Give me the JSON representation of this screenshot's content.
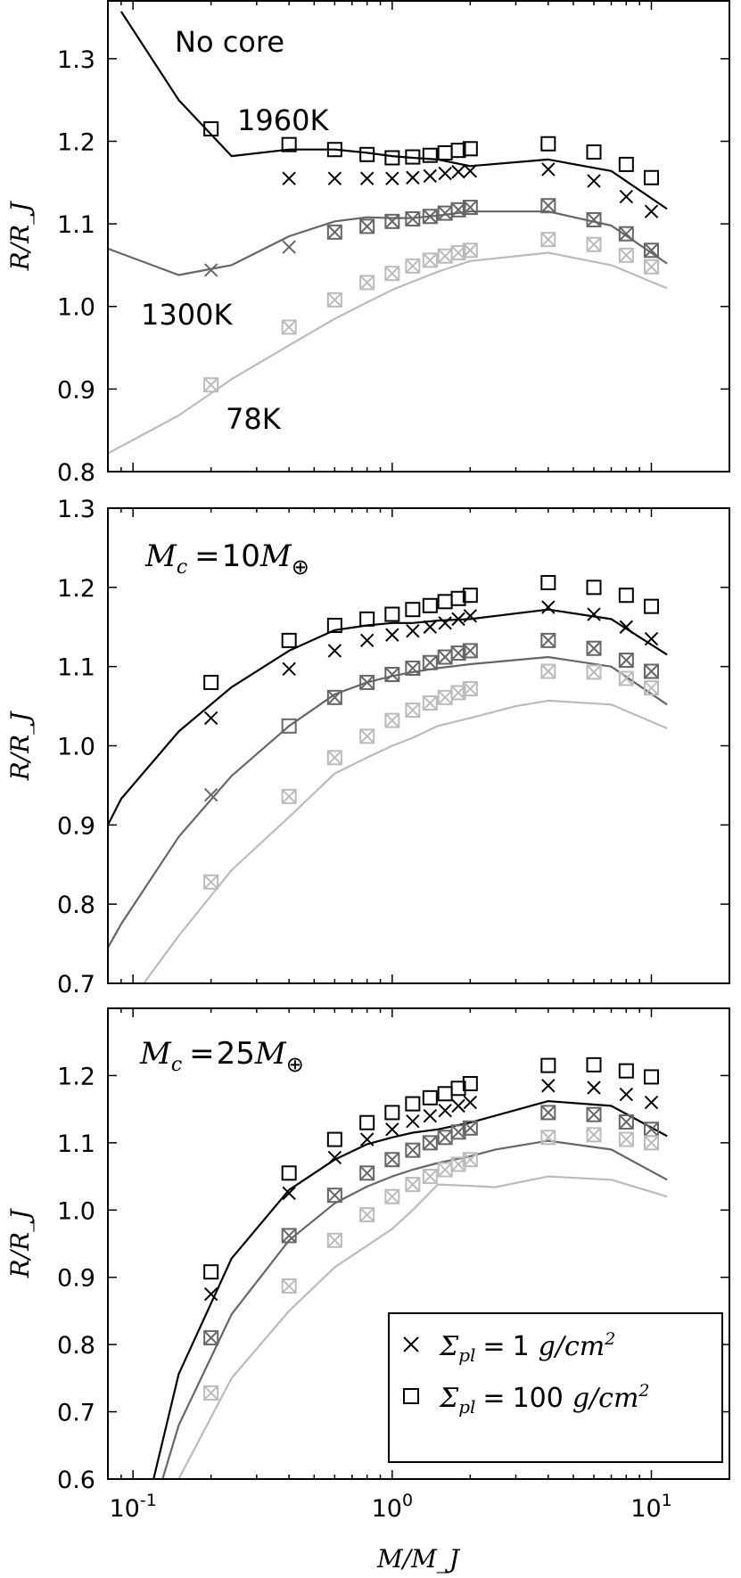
{
  "chart_data": [
    {
      "type": "line",
      "title": "No core",
      "ylabel": "R/R_J",
      "xscale": "log",
      "xlim": [
        0.08,
        20
      ],
      "ylim": [
        0.8,
        1.37
      ],
      "yticks": [
        0.8,
        0.9,
        1.0,
        1.1,
        1.2,
        1.3
      ],
      "ytick_labels": [
        "0.8",
        "0.9",
        "1.0",
        "1.1",
        "1.2",
        "1.3"
      ],
      "annotations": [
        {
          "text": "1960K",
          "x": 0.33,
          "y": 1.245
        },
        {
          "text": "1300K",
          "x": 0.14,
          "y": 0.995
        },
        {
          "text": "78K",
          "x": 0.27,
          "y": 0.875
        }
      ],
      "series": [
        {
          "kind": "line",
          "color": "#000000",
          "x": [
            0.09,
            0.15,
            0.24,
            0.4,
            0.6,
            0.8,
            1.0,
            1.2,
            1.5,
            2.0,
            4.0,
            7.0,
            11.5
          ],
          "y": [
            1.357,
            1.25,
            1.182,
            1.19,
            1.19,
            1.186,
            1.182,
            1.18,
            1.178,
            1.17,
            1.178,
            1.164,
            1.118
          ]
        },
        {
          "kind": "line",
          "color": "#666666",
          "x": [
            0.08,
            0.15,
            0.24,
            0.4,
            0.6,
            0.8,
            1.0,
            1.2,
            1.5,
            2.0,
            4.0,
            7.0,
            11.5
          ],
          "y": [
            1.07,
            1.038,
            1.05,
            1.085,
            1.103,
            1.108,
            1.107,
            1.107,
            1.11,
            1.115,
            1.115,
            1.098,
            1.052
          ]
        },
        {
          "kind": "line",
          "color": "#bbbbbb",
          "x": [
            0.08,
            0.15,
            0.24,
            0.4,
            0.6,
            0.8,
            1.0,
            1.2,
            1.5,
            2.0,
            4.0,
            7.0,
            11.5
          ],
          "y": [
            0.822,
            0.868,
            0.912,
            0.953,
            0.985,
            1.005,
            1.02,
            1.03,
            1.042,
            1.055,
            1.065,
            1.05,
            1.022
          ]
        },
        {
          "kind": "cross",
          "color": "#000000",
          "x": [
            0.4,
            0.6,
            0.8,
            1.0,
            1.2,
            1.4,
            1.6,
            1.8,
            2.0,
            4.0,
            6.0,
            8.0,
            10.0
          ],
          "y": [
            1.155,
            1.155,
            1.155,
            1.155,
            1.156,
            1.158,
            1.161,
            1.163,
            1.164,
            1.166,
            1.152,
            1.133,
            1.115
          ]
        },
        {
          "kind": "square",
          "color": "#000000",
          "x": [
            0.2,
            0.4,
            0.6,
            0.8,
            1.0,
            1.2,
            1.4,
            1.6,
            1.8,
            2.0,
            4.0,
            6.0,
            8.0,
            10.0
          ],
          "y": [
            1.215,
            1.196,
            1.19,
            1.184,
            1.18,
            1.181,
            1.183,
            1.186,
            1.189,
            1.191,
            1.197,
            1.187,
            1.172,
            1.156
          ]
        },
        {
          "kind": "cross",
          "color": "#666666",
          "x": [
            0.2,
            0.4,
            0.6,
            0.8,
            1.0,
            1.2,
            1.4,
            1.6,
            1.8,
            2.0,
            4.0,
            6.0,
            8.0,
            10.0
          ],
          "y": [
            1.044,
            1.072,
            1.09,
            1.097,
            1.103,
            1.106,
            1.109,
            1.113,
            1.117,
            1.12,
            1.122,
            1.105,
            1.088,
            1.068
          ]
        },
        {
          "kind": "square",
          "color": "#666666",
          "x": [
            0.6,
            0.8,
            1.0,
            1.2,
            1.4,
            1.6,
            1.8,
            2.0,
            4.0,
            6.0,
            8.0,
            10.0
          ],
          "y": [
            1.09,
            1.097,
            1.103,
            1.106,
            1.109,
            1.113,
            1.117,
            1.12,
            1.122,
            1.105,
            1.088,
            1.068
          ]
        },
        {
          "kind": "cross",
          "color": "#bbbbbb",
          "x": [
            0.2,
            0.4,
            0.6,
            0.8,
            1.0,
            1.2,
            1.4,
            1.6,
            1.8,
            2.0,
            4.0,
            6.0,
            8.0,
            10.0
          ],
          "y": [
            0.905,
            0.975,
            1.008,
            1.029,
            1.04,
            1.049,
            1.056,
            1.061,
            1.065,
            1.068,
            1.081,
            1.075,
            1.062,
            1.048
          ]
        },
        {
          "kind": "square",
          "color": "#bbbbbb",
          "x": [
            0.2,
            0.4,
            0.6,
            0.8,
            1.0,
            1.2,
            1.4,
            1.6,
            1.8,
            2.0,
            4.0,
            6.0,
            8.0,
            10.0
          ],
          "y": [
            0.905,
            0.975,
            1.008,
            1.029,
            1.04,
            1.049,
            1.056,
            1.061,
            1.065,
            1.068,
            1.081,
            1.075,
            1.062,
            1.048
          ]
        }
      ]
    },
    {
      "type": "line",
      "title_math": "M_c = 10 M_⊕",
      "title_parts": {
        "m": "M",
        "sub": "c",
        "eq": "=",
        "num": "10",
        "m2": "M",
        "sub2": "⊕"
      },
      "ylabel": "R/R_J",
      "xscale": "log",
      "xlim": [
        0.08,
        20
      ],
      "ylim": [
        0.7,
        1.3
      ],
      "yticks": [
        0.7,
        0.8,
        0.9,
        1.0,
        1.1,
        1.2,
        1.3
      ],
      "ytick_labels": [
        "0.7",
        "0.8",
        "0.9",
        "1.0",
        "1.1",
        "1.2",
        "1.3"
      ],
      "series": [
        {
          "kind": "line",
          "color": "#000000",
          "x": [
            0.08,
            0.09,
            0.15,
            0.24,
            0.4,
            0.6,
            0.8,
            1.0,
            1.2,
            1.5,
            2.0,
            4.0,
            7.0,
            11.5
          ],
          "y": [
            0.9,
            0.933,
            1.018,
            1.074,
            1.12,
            1.146,
            1.152,
            1.155,
            1.155,
            1.158,
            1.16,
            1.172,
            1.16,
            1.115
          ]
        },
        {
          "kind": "line",
          "color": "#666666",
          "x": [
            0.08,
            0.09,
            0.15,
            0.24,
            0.4,
            0.6,
            0.8,
            1.0,
            1.2,
            1.5,
            2.0,
            4.0,
            7.0,
            11.5
          ],
          "y": [
            0.745,
            0.775,
            0.885,
            0.962,
            1.025,
            1.065,
            1.08,
            1.088,
            1.093,
            1.098,
            1.103,
            1.112,
            1.1,
            1.052
          ]
        },
        {
          "kind": "line",
          "color": "#bbbbbb",
          "x": [
            0.11,
            0.15,
            0.24,
            0.4,
            0.6,
            0.8,
            1.0,
            1.2,
            1.5,
            2.0,
            3.0,
            4.0,
            7.0,
            11.5
          ],
          "y": [
            0.7,
            0.76,
            0.843,
            0.91,
            0.965,
            0.985,
            1.0,
            1.01,
            1.025,
            1.035,
            1.05,
            1.057,
            1.052,
            1.022
          ]
        },
        {
          "kind": "cross",
          "color": "#000000",
          "x": [
            0.2,
            0.4,
            0.6,
            0.8,
            1.0,
            1.2,
            1.4,
            1.6,
            1.8,
            2.0,
            4.0,
            6.0,
            8.0,
            10.0
          ],
          "y": [
            1.035,
            1.097,
            1.12,
            1.133,
            1.14,
            1.145,
            1.15,
            1.155,
            1.16,
            1.164,
            1.175,
            1.166,
            1.15,
            1.135
          ]
        },
        {
          "kind": "square",
          "color": "#000000",
          "x": [
            0.2,
            0.4,
            0.6,
            0.8,
            1.0,
            1.2,
            1.4,
            1.6,
            1.8,
            2.0,
            4.0,
            6.0,
            8.0,
            10.0
          ],
          "y": [
            1.08,
            1.133,
            1.152,
            1.16,
            1.166,
            1.172,
            1.177,
            1.182,
            1.186,
            1.19,
            1.206,
            1.2,
            1.19,
            1.176
          ]
        },
        {
          "kind": "cross",
          "color": "#666666",
          "x": [
            0.2,
            0.6,
            0.8,
            1.0,
            1.2,
            1.4,
            1.6,
            1.8,
            2.0,
            4.0,
            6.0,
            8.0,
            10.0
          ],
          "y": [
            0.938,
            1.061,
            1.08,
            1.09,
            1.098,
            1.105,
            1.112,
            1.117,
            1.12,
            1.133,
            1.123,
            1.108,
            1.094
          ]
        },
        {
          "kind": "square",
          "color": "#666666",
          "x": [
            0.4,
            0.6,
            0.8,
            1.0,
            1.2,
            1.4,
            1.6,
            1.8,
            2.0,
            4.0,
            6.0,
            8.0,
            10.0
          ],
          "y": [
            1.025,
            1.061,
            1.08,
            1.09,
            1.098,
            1.105,
            1.112,
            1.117,
            1.12,
            1.133,
            1.123,
            1.108,
            1.094
          ]
        },
        {
          "kind": "cross",
          "color": "#bbbbbb",
          "x": [
            0.2,
            0.4,
            0.6,
            0.8,
            1.0,
            1.2,
            1.4,
            1.6,
            1.8,
            2.0,
            4.0,
            6.0,
            8.0,
            10.0
          ],
          "y": [
            0.828,
            0.936,
            0.985,
            1.012,
            1.032,
            1.045,
            1.054,
            1.061,
            1.067,
            1.072,
            1.094,
            1.093,
            1.085,
            1.073
          ]
        },
        {
          "kind": "square",
          "color": "#bbbbbb",
          "x": [
            0.2,
            0.4,
            0.6,
            0.8,
            1.0,
            1.2,
            1.4,
            1.6,
            1.8,
            2.0,
            4.0,
            6.0,
            8.0,
            10.0
          ],
          "y": [
            0.828,
            0.936,
            0.985,
            1.012,
            1.032,
            1.045,
            1.054,
            1.061,
            1.067,
            1.072,
            1.094,
            1.093,
            1.085,
            1.073
          ]
        }
      ]
    },
    {
      "type": "line",
      "title_math": "M_c = 25 M_⊕",
      "title_parts": {
        "m": "M",
        "sub": "c",
        "eq": "=",
        "num": "25",
        "m2": "M",
        "sub2": "⊕"
      },
      "ylabel": "R/R_J",
      "xlabel": "M/M_J",
      "xscale": "log",
      "xlim": [
        0.08,
        20
      ],
      "ylim": [
        0.6,
        1.3
      ],
      "yticks": [
        0.6,
        0.7,
        0.8,
        0.9,
        1.0,
        1.1,
        1.2
      ],
      "ytick_labels": [
        "0.6",
        "0.7",
        "0.8",
        "0.9",
        "1.0",
        "1.1",
        "1.2"
      ],
      "xticks": [
        0.1,
        1.0,
        10.0
      ],
      "xtick_labels": [
        {
          "base": "10",
          "exp": "-1"
        },
        {
          "base": "10",
          "exp": "0"
        },
        {
          "base": "10",
          "exp": "1"
        }
      ],
      "legend": {
        "position": "lower-right",
        "entries": [
          {
            "marker": "cross",
            "sym": "Σ",
            "sub": "pl",
            "eq": "=",
            "num": "1",
            "unit_g": "g",
            "slash": "/",
            "unit_cm": "cm",
            "sup": "2"
          },
          {
            "marker": "square",
            "sym": "Σ",
            "sub": "pl",
            "eq": "=",
            "num": "100",
            "unit_g": "g",
            "slash": "/",
            "unit_cm": "cm",
            "sup": "2"
          }
        ]
      },
      "series": [
        {
          "kind": "line",
          "color": "#000000",
          "x": [
            0.12,
            0.15,
            0.24,
            0.4,
            0.6,
            0.8,
            1.0,
            1.2,
            1.5,
            2.0,
            4.0,
            7.0,
            11.5
          ],
          "y": [
            0.6,
            0.756,
            0.928,
            1.03,
            1.075,
            1.098,
            1.108,
            1.115,
            1.12,
            1.13,
            1.162,
            1.155,
            1.11
          ]
        },
        {
          "kind": "line",
          "color": "#666666",
          "x": [
            0.13,
            0.15,
            0.24,
            0.4,
            0.6,
            0.8,
            1.0,
            1.2,
            1.5,
            2.0,
            2.5,
            4.0,
            7.0,
            11.5
          ],
          "y": [
            0.6,
            0.68,
            0.845,
            0.955,
            1.01,
            1.035,
            1.05,
            1.06,
            1.07,
            1.08,
            1.09,
            1.103,
            1.09,
            1.045
          ]
        },
        {
          "kind": "line",
          "color": "#bbbbbb",
          "x": [
            0.15,
            0.24,
            0.4,
            0.6,
            0.8,
            1.0,
            1.2,
            1.5,
            2.0,
            2.5,
            4.0,
            7.0,
            11.5
          ],
          "y": [
            0.6,
            0.75,
            0.85,
            0.915,
            0.947,
            0.972,
            1.0,
            1.038,
            1.036,
            1.034,
            1.05,
            1.045,
            1.02
          ]
        },
        {
          "kind": "cross",
          "color": "#000000",
          "x": [
            0.2,
            0.4,
            0.6,
            0.8,
            1.0,
            1.2,
            1.4,
            1.6,
            1.8,
            2.0,
            4.0,
            6.0,
            8.0,
            10.0
          ],
          "y": [
            0.875,
            1.025,
            1.078,
            1.105,
            1.12,
            1.132,
            1.14,
            1.148,
            1.155,
            1.16,
            1.185,
            1.182,
            1.172,
            1.16
          ]
        },
        {
          "kind": "square",
          "color": "#000000",
          "x": [
            0.2,
            0.4,
            0.6,
            0.8,
            1.0,
            1.2,
            1.4,
            1.6,
            1.8,
            2.0,
            4.0,
            6.0,
            8.0,
            10.0
          ],
          "y": [
            0.908,
            1.055,
            1.105,
            1.13,
            1.145,
            1.158,
            1.167,
            1.173,
            1.181,
            1.188,
            1.215,
            1.216,
            1.207,
            1.198
          ]
        },
        {
          "kind": "cross",
          "color": "#666666",
          "x": [
            0.2,
            0.4,
            0.6,
            0.8,
            1.0,
            1.2,
            1.4,
            1.6,
            1.8,
            2.0,
            4.0,
            6.0,
            8.0,
            10.0
          ],
          "y": [
            0.81,
            0.962,
            1.022,
            1.055,
            1.075,
            1.089,
            1.1,
            1.108,
            1.116,
            1.122,
            1.145,
            1.142,
            1.131,
            1.12
          ]
        },
        {
          "kind": "square",
          "color": "#666666",
          "x": [
            0.2,
            0.4,
            0.6,
            0.8,
            1.0,
            1.2,
            1.4,
            1.6,
            1.8,
            2.0,
            4.0,
            6.0,
            8.0,
            10.0
          ],
          "y": [
            0.81,
            0.962,
            1.022,
            1.055,
            1.075,
            1.089,
            1.1,
            1.108,
            1.116,
            1.122,
            1.145,
            1.142,
            1.131,
            1.12
          ]
        },
        {
          "kind": "cross",
          "color": "#bbbbbb",
          "x": [
            0.2,
            0.4,
            0.6,
            0.8,
            1.0,
            1.2,
            1.4,
            1.6,
            1.8,
            2.0,
            4.0,
            6.0,
            8.0,
            10.0
          ],
          "y": [
            0.728,
            0.887,
            0.955,
            0.993,
            1.02,
            1.038,
            1.05,
            1.06,
            1.068,
            1.075,
            1.108,
            1.112,
            1.105,
            1.1
          ]
        },
        {
          "kind": "square",
          "color": "#bbbbbb",
          "x": [
            0.2,
            0.4,
            0.6,
            0.8,
            1.0,
            1.2,
            1.4,
            1.6,
            1.8,
            2.0,
            4.0,
            6.0,
            8.0,
            10.0
          ],
          "y": [
            0.728,
            0.887,
            0.955,
            0.993,
            1.02,
            1.038,
            1.05,
            1.06,
            1.068,
            1.075,
            1.108,
            1.112,
            1.105,
            1.1
          ]
        }
      ]
    }
  ]
}
